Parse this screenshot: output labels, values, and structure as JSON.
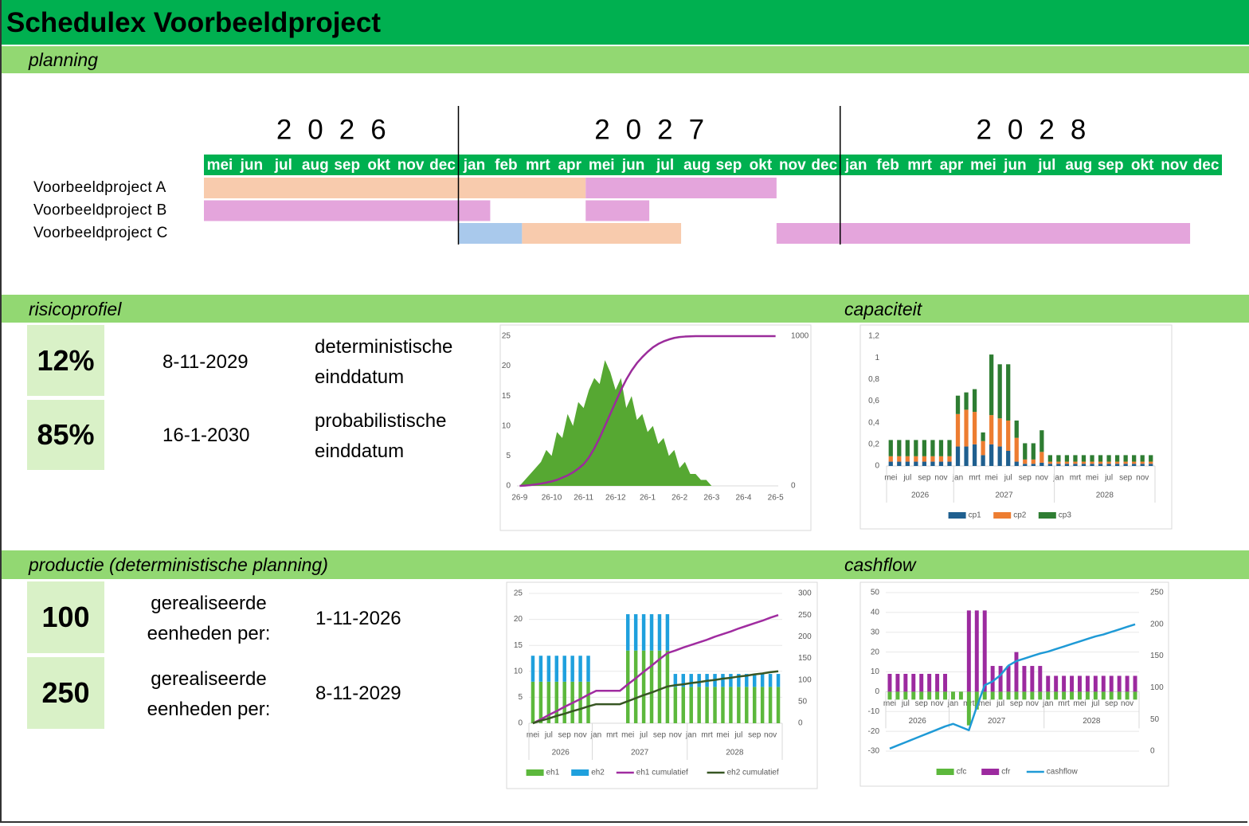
{
  "header": {
    "title": "Schedulex Voorbeeldproject"
  },
  "sections": [
    "planning",
    "risicoprofiel",
    "capaciteit",
    "productie (deterministische planning)",
    "cashflow"
  ],
  "planning": {
    "years": [
      {
        "label": "2026",
        "months": [
          "mei",
          "jun",
          "jul",
          "aug",
          "sep",
          "okt",
          "nov",
          "dec"
        ]
      },
      {
        "label": "2027",
        "months": [
          "jan",
          "feb",
          "mrt",
          "apr",
          "mei",
          "jun",
          "jul",
          "aug",
          "sep",
          "okt",
          "nov",
          "dec"
        ]
      },
      {
        "label": "2028",
        "months": [
          "jan",
          "feb",
          "mrt",
          "apr",
          "mei",
          "jun",
          "jul",
          "aug",
          "sep",
          "okt",
          "nov",
          "dec"
        ]
      }
    ],
    "rows": [
      {
        "name": "Voorbeeldproject A",
        "bars": [
          {
            "start": [
              "2026",
              "mei"
            ],
            "end": [
              "2027",
              "apr"
            ],
            "color": "#f8cbad"
          },
          {
            "start": [
              "2027",
              "mei"
            ],
            "end": [
              "2027",
              "okt"
            ],
            "color": "#e4a5dc"
          }
        ]
      },
      {
        "name": "Voorbeeldproject B",
        "bars": [
          {
            "start": [
              "2026",
              "mei"
            ],
            "end": [
              "2027",
              "jan"
            ],
            "color": "#e4a5dc"
          },
          {
            "start": [
              "2027",
              "mei"
            ],
            "end": [
              "2027",
              "jun"
            ],
            "color": "#e4a5dc"
          }
        ]
      },
      {
        "name": "Voorbeeldproject C",
        "bars": [
          {
            "start": [
              "2027",
              "jan"
            ],
            "end": [
              "2027",
              "feb"
            ],
            "color": "#a9c9ec"
          },
          {
            "start": [
              "2027",
              "mrt"
            ],
            "end": [
              "2027",
              "jul"
            ],
            "color": "#f8cbad"
          },
          {
            "start": [
              "2027",
              "nov"
            ],
            "end": [
              "2028",
              "nov"
            ],
            "color": "#e4a5dc"
          }
        ]
      }
    ]
  },
  "risk": {
    "rows": [
      {
        "percentage": "12%",
        "date": "8-11-2029",
        "label": "deterministische einddatum"
      },
      {
        "percentage": "85%",
        "date": "16-1-2030",
        "label": "probabilistische einddatum"
      }
    ]
  },
  "production": {
    "rows": [
      {
        "units": "100",
        "label": "gerealiseerde eenheden per:",
        "date": "1-11-2026"
      },
      {
        "units": "250",
        "label": "gerealiseerde eenheden per:",
        "date": "8-11-2029"
      }
    ]
  },
  "chart_data": [
    {
      "type": "combo",
      "categories": [
        "26-9",
        null,
        null,
        null,
        null,
        null,
        "26-10",
        null,
        null,
        null,
        null,
        null,
        "26-11",
        null,
        null,
        null,
        null,
        null,
        "26-12",
        null,
        null,
        null,
        null,
        null,
        "26-1",
        null,
        null,
        null,
        null,
        null,
        "26-2",
        null,
        null,
        null,
        null,
        null,
        "26-3",
        null,
        null,
        null,
        null,
        null,
        "26-4",
        null,
        null,
        null,
        null,
        null,
        "26-5"
      ],
      "ylim": [
        0,
        25
      ],
      "yticks": [
        0,
        5,
        10,
        15,
        20,
        25
      ],
      "y2lim": [
        0,
        1000
      ],
      "y2ticks": [
        0,
        1000
      ],
      "grid": false,
      "series": [
        {
          "kind": "area",
          "color": "#56a832",
          "values": [
            0,
            1,
            2,
            3,
            4,
            6,
            5,
            9,
            8,
            12,
            10,
            14,
            13,
            16,
            18,
            17,
            21,
            19,
            16,
            18,
            13,
            15,
            11,
            12,
            9,
            10,
            7,
            8,
            5,
            6,
            3,
            4,
            2,
            2,
            1,
            1,
            0,
            0,
            0,
            0,
            0,
            0,
            0,
            0,
            0,
            0,
            0,
            0,
            0
          ]
        },
        {
          "kind": "line",
          "axis": "y2",
          "color": "#9b2c9b",
          "values": [
            0,
            2,
            5,
            10,
            15,
            22,
            30,
            40,
            55,
            70,
            90,
            115,
            145,
            190,
            250,
            320,
            400,
            480,
            560,
            640,
            710,
            770,
            820,
            860,
            895,
            925,
            948,
            965,
            978,
            988,
            994,
            997,
            999,
            1000,
            1000,
            1000,
            1000,
            1000,
            1000,
            1000,
            1000,
            1000,
            1000,
            1000,
            1000,
            1000,
            1000,
            1000,
            1000
          ]
        }
      ]
    },
    {
      "type": "bar",
      "stacked": true,
      "categories": [
        "mei",
        null,
        "jul",
        null,
        "sep",
        null,
        "nov",
        null,
        "jan",
        null,
        "mrt",
        null,
        "mei",
        null,
        "jul",
        null,
        "sep",
        null,
        "nov",
        null,
        "jan",
        null,
        "mrt",
        null,
        "mei",
        null,
        "jul",
        null,
        "sep",
        null,
        "nov",
        null
      ],
      "groups": [
        {
          "label": "2026",
          "size": 8
        },
        {
          "label": "2027",
          "size": 12
        },
        {
          "label": "2028",
          "size": 12
        }
      ],
      "ylim": [
        0,
        1.2
      ],
      "yticks": [
        0,
        {
          "value": 0.2,
          "label": "0,2"
        },
        {
          "value": 0.4,
          "label": "0,4"
        },
        {
          "value": 0.6,
          "label": "0,6"
        },
        {
          "value": 0.8,
          "label": "0,8"
        },
        1,
        {
          "value": 1.2,
          "label": "1,2"
        }
      ],
      "grid": false,
      "legend": "bottom",
      "series": [
        {
          "name": "cp1",
          "kind": "bar",
          "color": "#1f5f8f",
          "values": [
            0.04,
            0.04,
            0.04,
            0.04,
            0.04,
            0.04,
            0.04,
            0.04,
            0.18,
            0.18,
            0.2,
            0.1,
            0.2,
            0.18,
            0.14,
            0.04,
            0.02,
            0.02,
            0.03,
            0.02,
            0.02,
            0.02,
            0.02,
            0.02,
            0.02,
            0.02,
            0.02,
            0.02,
            0.02,
            0.02,
            0.02,
            0.02
          ]
        },
        {
          "name": "cp2",
          "kind": "bar",
          "color": "#ed7d31",
          "values": [
            0.05,
            0.05,
            0.05,
            0.05,
            0.05,
            0.05,
            0.05,
            0.05,
            0.3,
            0.34,
            0.3,
            0.13,
            0.27,
            0.26,
            0.28,
            0.22,
            0.04,
            0.04,
            0.1,
            0.02,
            0.02,
            0.02,
            0.02,
            0.02,
            0.02,
            0.02,
            0.02,
            0.02,
            0.02,
            0.02,
            0.02,
            0.02
          ]
        },
        {
          "name": "cp3",
          "kind": "bar",
          "color": "#2e7d32",
          "values": [
            0.15,
            0.15,
            0.15,
            0.15,
            0.15,
            0.15,
            0.15,
            0.15,
            0.17,
            0.16,
            0.21,
            0.08,
            0.56,
            0.5,
            0.52,
            0.16,
            0.15,
            0.15,
            0.2,
            0.06,
            0.06,
            0.06,
            0.06,
            0.06,
            0.06,
            0.06,
            0.06,
            0.06,
            0.06,
            0.06,
            0.06,
            0.06
          ]
        }
      ]
    },
    {
      "type": "combo",
      "stacked": true,
      "categories": [
        "mei",
        null,
        "jul",
        null,
        "sep",
        null,
        "nov",
        null,
        "jan",
        null,
        "mrt",
        null,
        "mei",
        null,
        "jul",
        null,
        "sep",
        null,
        "nov",
        null,
        "jan",
        null,
        "mrt",
        null,
        "mei",
        null,
        "jul",
        null,
        "sep",
        null,
        "nov",
        null
      ],
      "groups": [
        {
          "label": "2026",
          "size": 8
        },
        {
          "label": "2027",
          "size": 12
        },
        {
          "label": "2028",
          "size": 12
        }
      ],
      "ylim": [
        0,
        25
      ],
      "yticks": [
        0,
        5,
        10,
        15,
        20,
        25
      ],
      "y2lim": [
        0,
        300
      ],
      "y2ticks": [
        0,
        50,
        100,
        150,
        200,
        250,
        300
      ],
      "grid": true,
      "legend": "bottom",
      "series": [
        {
          "name": "eh1",
          "kind": "bar",
          "color": "#5cb83c",
          "values": [
            8,
            8,
            8,
            8,
            8,
            8,
            8,
            8,
            0,
            0,
            0,
            0,
            14,
            14,
            14,
            14,
            14,
            14,
            7,
            7,
            7,
            7,
            7,
            7,
            7,
            7,
            7,
            7,
            7,
            7,
            7,
            7
          ]
        },
        {
          "name": "eh2",
          "kind": "bar",
          "color": "#1fa0dd",
          "values": [
            5,
            5,
            5,
            5,
            5,
            5,
            5,
            5,
            0,
            0,
            0,
            0,
            7,
            7,
            7,
            7,
            7,
            7,
            2.5,
            2.5,
            2.5,
            2.5,
            2.5,
            2.5,
            2.5,
            2.5,
            2.5,
            2.5,
            2.5,
            2.5,
            2.5,
            2.5
          ]
        },
        {
          "name": "eh1 cumulatief",
          "kind": "line",
          "axis": "y2",
          "color": "#a02ca0",
          "values": [
            0,
            9,
            19,
            28,
            38,
            47,
            56,
            66,
            75,
            75,
            75,
            75,
            90,
            104,
            119,
            133,
            148,
            162,
            168,
            175,
            181,
            187,
            193,
            200,
            206,
            212,
            219,
            225,
            231,
            237,
            244,
            250
          ]
        },
        {
          "name": "eh2 cumulatief",
          "kind": "line",
          "axis": "y2",
          "color": "#375623",
          "values": [
            0,
            6,
            11,
            17,
            22,
            28,
            33,
            39,
            44,
            44,
            44,
            44,
            51,
            58,
            65,
            71,
            78,
            85,
            88,
            90,
            93,
            95,
            98,
            100,
            103,
            105,
            108,
            110,
            113,
            115,
            118,
            120
          ]
        }
      ]
    },
    {
      "type": "combo",
      "stacked": true,
      "categories": [
        "mei",
        null,
        "jul",
        null,
        "sep",
        null,
        "nov",
        null,
        "jan",
        null,
        "mrt",
        null,
        "mei",
        null,
        "jul",
        null,
        "sep",
        null,
        "nov",
        null,
        "jan",
        null,
        "mrt",
        null,
        "mei",
        null,
        "jul",
        null,
        "sep",
        null,
        "nov",
        null
      ],
      "groups": [
        {
          "label": "2026",
          "size": 8
        },
        {
          "label": "2027",
          "size": 12
        },
        {
          "label": "2028",
          "size": 12
        }
      ],
      "ylim": [
        -30,
        50
      ],
      "yticks": [
        -30,
        -20,
        -10,
        0,
        10,
        20,
        30,
        40,
        50
      ],
      "y2lim": [
        0,
        250
      ],
      "y2ticks": [
        0,
        50,
        100,
        150,
        200,
        250
      ],
      "grid": true,
      "legend": "bottom",
      "series": [
        {
          "name": "cfc",
          "kind": "bar",
          "color": "#5cb83c",
          "values": [
            -4,
            -4,
            -4,
            -4,
            -4,
            -4,
            -4,
            -4,
            -4,
            -4,
            -17,
            -9,
            -4,
            -4,
            -4,
            -4,
            -4,
            -4,
            -4,
            -4,
            -4,
            -4,
            -4,
            -4,
            -4,
            -4,
            -4,
            -4,
            -4,
            -4,
            -4,
            -4
          ]
        },
        {
          "name": "cfr",
          "kind": "bar",
          "color": "#9c2a9f",
          "values": [
            9,
            9,
            9,
            9,
            9,
            9,
            9,
            9,
            0,
            0,
            41,
            41,
            41,
            13,
            13,
            13,
            20,
            13,
            13,
            13,
            8,
            8,
            8,
            8,
            8,
            8,
            8,
            8,
            8,
            8,
            8,
            8
          ]
        },
        {
          "name": "cashflow",
          "kind": "line",
          "axis": "y2",
          "color": "#1f9ad6",
          "values": [
            4,
            9,
            14,
            19,
            24,
            29,
            34,
            39,
            43,
            38,
            33,
            70,
            104,
            110,
            120,
            135,
            142,
            146,
            150,
            154,
            157,
            161,
            165,
            169,
            173,
            177,
            181,
            184,
            188,
            192,
            196,
            200
          ]
        }
      ]
    }
  ]
}
